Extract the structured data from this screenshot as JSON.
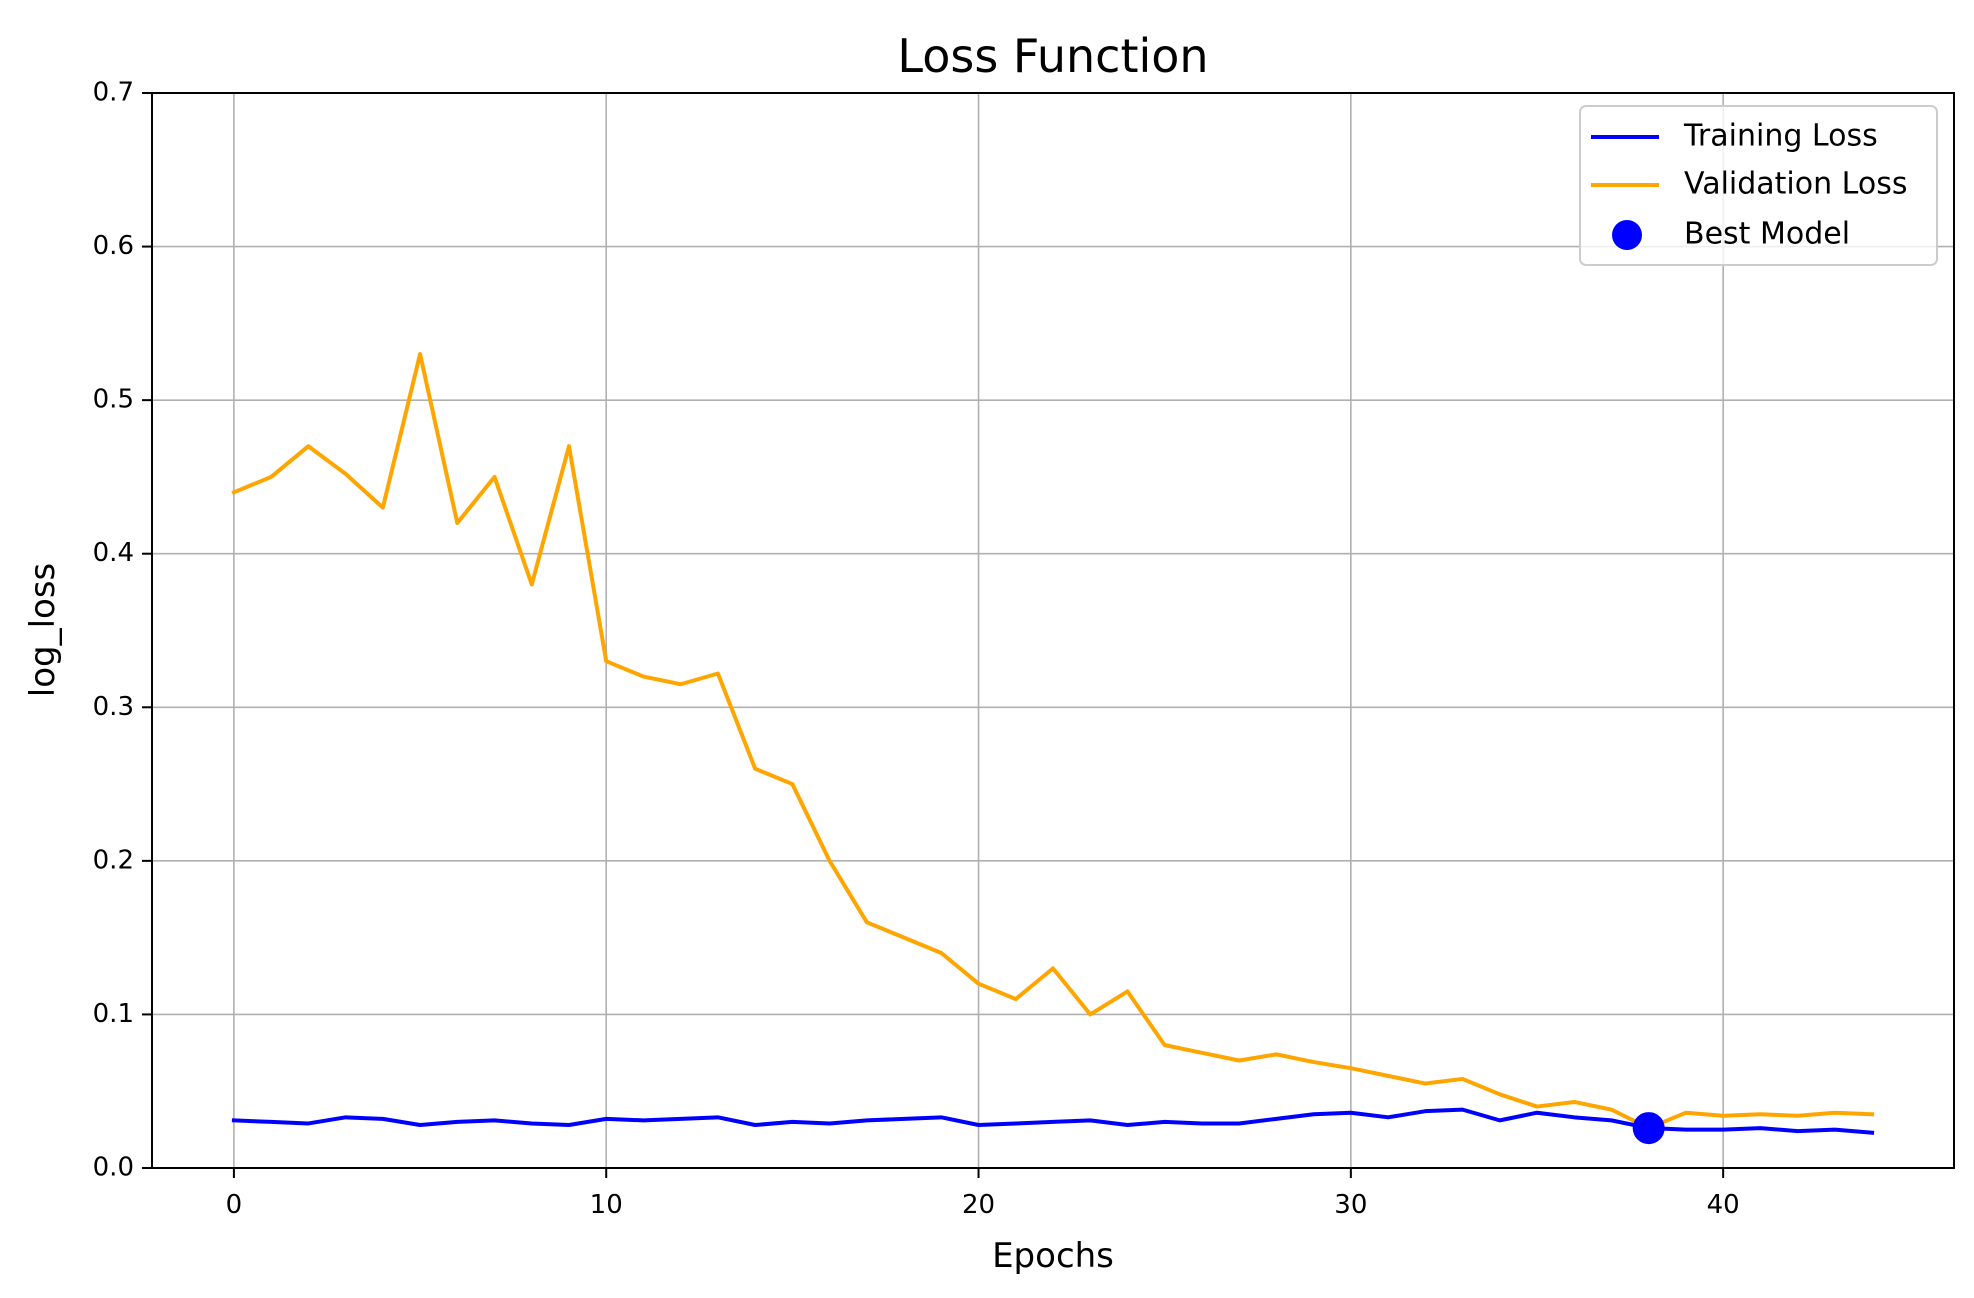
{
  "chart_data": {
    "type": "line",
    "title": "Loss Function",
    "xlabel": "Epochs",
    "ylabel": "log_loss",
    "xlim": [
      -2.2,
      46.2
    ],
    "ylim": [
      0.0,
      0.7
    ],
    "xticks": [
      0,
      10,
      20,
      30,
      40
    ],
    "yticks": [
      0.0,
      0.1,
      0.2,
      0.3,
      0.4,
      0.5,
      0.6,
      0.7
    ],
    "xtick_labels": [
      "0",
      "10",
      "20",
      "30",
      "40"
    ],
    "ytick_labels": [
      "0.0",
      "0.1",
      "0.2",
      "0.3",
      "0.4",
      "0.5",
      "0.6",
      "0.7"
    ],
    "grid": true,
    "legend_position": "top-right",
    "x": [
      0,
      1,
      2,
      3,
      4,
      5,
      6,
      7,
      8,
      9,
      10,
      11,
      12,
      13,
      14,
      15,
      16,
      17,
      18,
      19,
      20,
      21,
      22,
      23,
      24,
      25,
      26,
      27,
      28,
      29,
      30,
      31,
      32,
      33,
      34,
      35,
      36,
      37,
      38,
      39,
      40,
      41,
      42,
      43,
      44
    ],
    "series": [
      {
        "name": "Training Loss",
        "color": "#0000ff",
        "values": [
          0.031,
          0.03,
          0.029,
          0.033,
          0.032,
          0.028,
          0.03,
          0.031,
          0.029,
          0.028,
          0.032,
          0.031,
          0.032,
          0.033,
          0.028,
          0.03,
          0.029,
          0.031,
          0.032,
          0.033,
          0.028,
          0.029,
          0.03,
          0.031,
          0.028,
          0.03,
          0.029,
          0.029,
          0.032,
          0.035,
          0.036,
          0.033,
          0.037,
          0.038,
          0.031,
          0.036,
          0.033,
          0.031,
          0.026,
          0.025,
          0.025,
          0.026,
          0.024,
          0.025,
          0.023
        ]
      },
      {
        "name": "Validation Loss",
        "color": "#ffa500",
        "values": [
          0.44,
          0.45,
          0.47,
          0.452,
          0.43,
          0.53,
          0.42,
          0.45,
          0.38,
          0.47,
          0.33,
          0.32,
          0.315,
          0.322,
          0.26,
          0.25,
          0.2,
          0.16,
          0.15,
          0.14,
          0.12,
          0.11,
          0.13,
          0.1,
          0.115,
          0.08,
          0.075,
          0.07,
          0.074,
          0.069,
          0.065,
          0.06,
          0.055,
          0.058,
          0.048,
          0.04,
          0.043,
          0.038,
          0.026,
          0.036,
          0.034,
          0.035,
          0.034,
          0.036,
          0.035
        ]
      }
    ],
    "markers": [
      {
        "name": "Best Model",
        "color": "#0000ff",
        "x": 38,
        "y": 0.026
      }
    ]
  }
}
